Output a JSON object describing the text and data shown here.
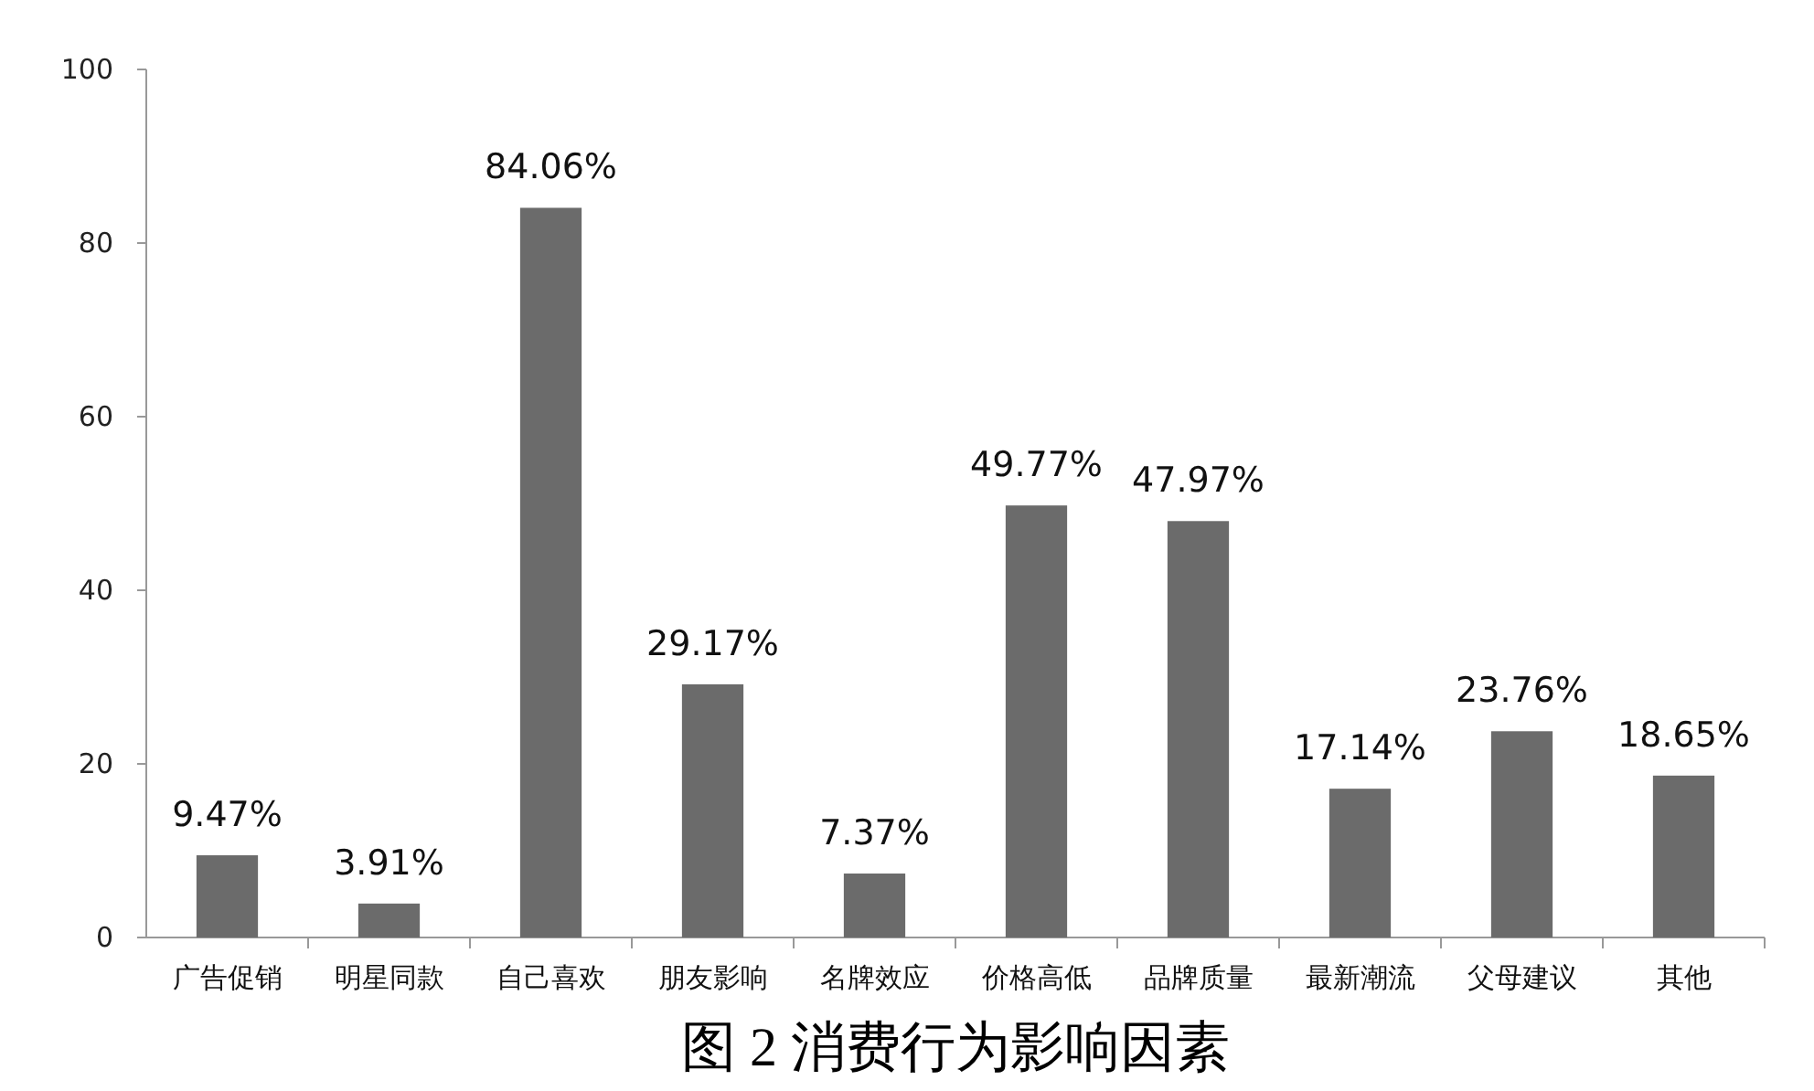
{
  "chart_data": {
    "type": "bar",
    "title": "图 2 消费行为影响因素",
    "categories": [
      "广告促销",
      "明星同款",
      "自己喜欢",
      "朋友影响",
      "名牌效应",
      "价格高低",
      "品牌质量",
      "最新潮流",
      "父母建议",
      "其他"
    ],
    "values": [
      9.47,
      3.91,
      84.06,
      29.17,
      7.37,
      49.77,
      47.97,
      17.14,
      23.76,
      18.65
    ],
    "value_labels": [
      "9.47%",
      "3.91%",
      "84.06%",
      "29.17%",
      "7.37%",
      "49.77%",
      "47.97%",
      "17.14%",
      "23.76%",
      "18.65%"
    ],
    "color": "#6b6b6b",
    "ylim": [
      0,
      100
    ],
    "yticks": [
      0,
      20,
      40,
      60,
      80,
      100
    ]
  }
}
